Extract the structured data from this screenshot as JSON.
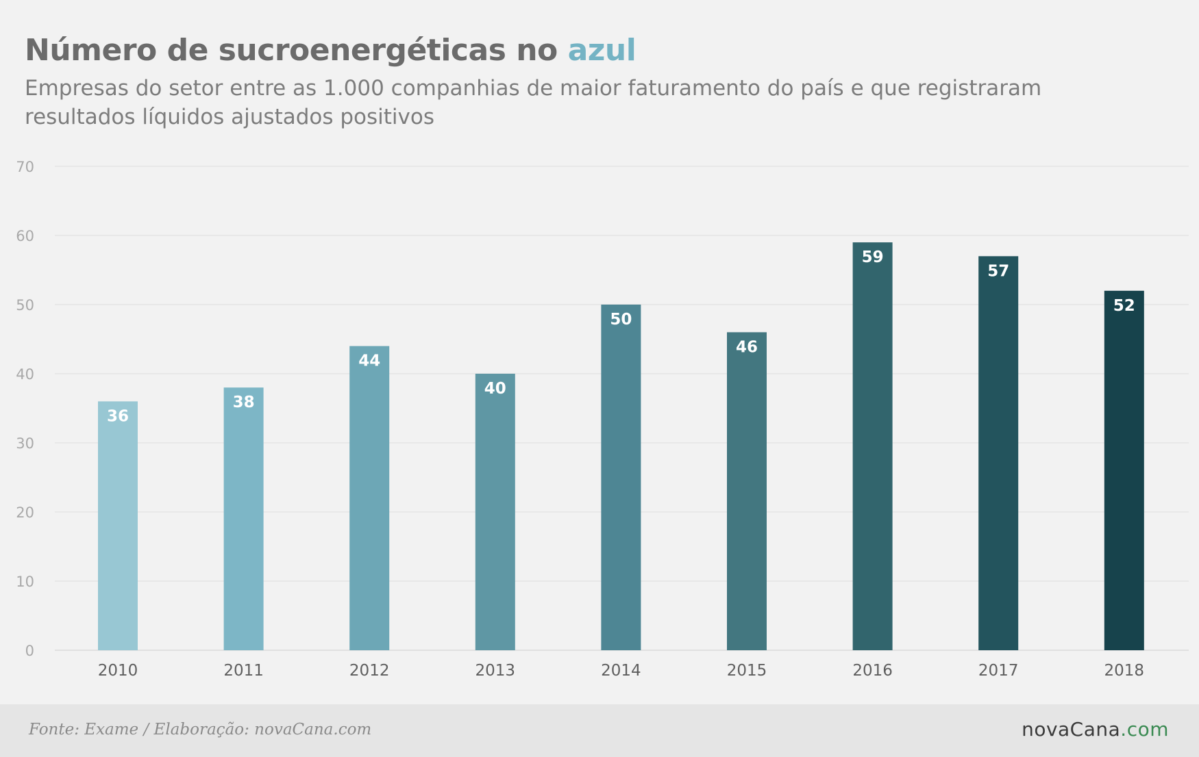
{
  "header": {
    "title_main": "Número de sucroenergéticas no ",
    "title_accent": "azul",
    "subtitle": "Empresas do setor entre as 1.000 companhias de maior faturamento do país e que registraram resultados líquidos ajustados positivos"
  },
  "footer": {
    "source": "Fonte: Exame / Elaboração: novaCana.com",
    "brand_name": "novaCana",
    "brand_tld": ".com"
  },
  "colors": {
    "accent": "#74b3c4",
    "brand_tld": "#3a8a52"
  },
  "chart_data": {
    "type": "bar",
    "categories": [
      "2010",
      "2011",
      "2012",
      "2013",
      "2014",
      "2015",
      "2016",
      "2017",
      "2018"
    ],
    "values": [
      36,
      38,
      44,
      40,
      50,
      46,
      59,
      57,
      52
    ],
    "ylim": [
      0,
      70
    ],
    "yticks": [
      0,
      10,
      20,
      30,
      40,
      50,
      60,
      70
    ],
    "grid": true,
    "data_labels": true,
    "bar_colors": [
      "#98c7d3",
      "#7db6c6",
      "#6da7b6",
      "#5f97a4",
      "#4e8694",
      "#437780",
      "#32656d",
      "#23545d",
      "#17434c"
    ]
  }
}
